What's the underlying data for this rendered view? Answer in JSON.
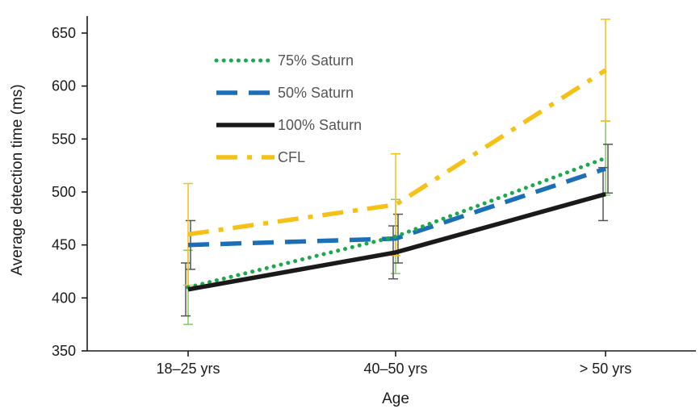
{
  "chart_data": {
    "type": "line",
    "xlabel": "Age",
    "ylabel": "Average detection time  (ms)",
    "categories": [
      "18–25 yrs",
      "40–50 yrs",
      "> 50 yrs"
    ],
    "ylim": [
      350,
      660
    ],
    "yticks": [
      350,
      400,
      450,
      500,
      550,
      600,
      650
    ],
    "grid": false,
    "legend_position": "top-left",
    "series": [
      {
        "name": "75% Saturn",
        "style": "dotted",
        "color": "#1aaa4a",
        "errorbar_color": "#86c96a",
        "values": [
          410,
          458,
          532
        ],
        "errors": [
          35,
          35,
          35
        ]
      },
      {
        "name": "50% Saturn",
        "style": "dashed",
        "color": "#1b6fb6",
        "errorbar_color": "#555555",
        "values": [
          450,
          456,
          522
        ],
        "errors": [
          23,
          23,
          23
        ]
      },
      {
        "name": "100% Saturn",
        "style": "solid",
        "color": "#1a1a1a",
        "errorbar_color": "#555555",
        "values": [
          408,
          443,
          498
        ],
        "errors": [
          25,
          25,
          25
        ]
      },
      {
        "name": "CFL",
        "style": "dashdot",
        "color": "#f5c116",
        "errorbar_color": "#f5c116",
        "values": [
          460,
          488,
          615
        ],
        "errors": [
          48,
          48,
          48
        ]
      }
    ]
  }
}
